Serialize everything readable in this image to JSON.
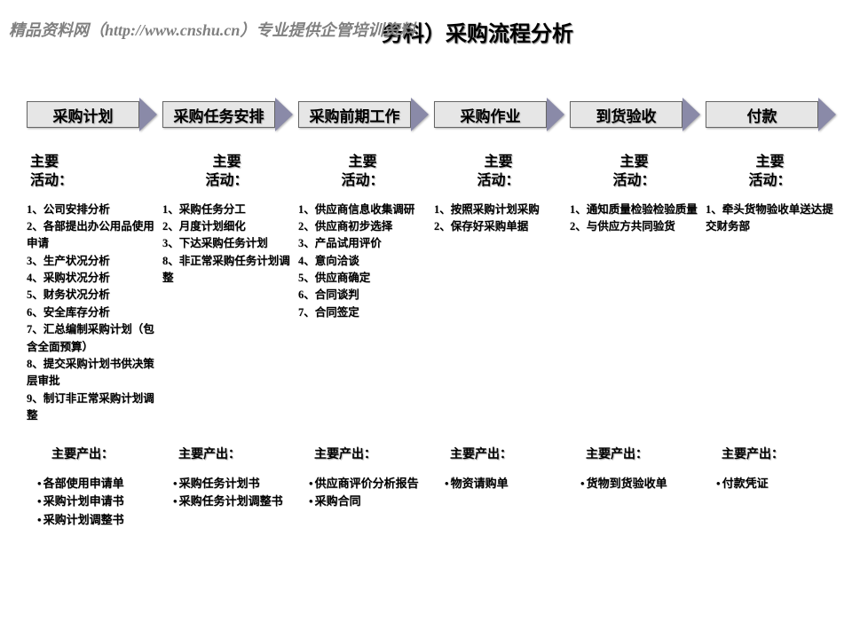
{
  "watermark": "精品资料网（http://www.cnshu.cn）专业提供企管培训资料",
  "page_title_suffix": "务科）采购流程分析",
  "section_activities_label": "主要\n活动：",
  "section_outputs_label": "主要产出：",
  "arrow_fill": "#e6e6e6",
  "arrow_head": "#8a8aa8",
  "columns": [
    {
      "phase": "采购计划",
      "activities": [
        "1、公司安排分析",
        "2、各部提出办公用品使用申请",
        "3、生产状况分析",
        "4、采购状况分析",
        "5、财务状况分析",
        "6、安全库存分析",
        "7、汇总编制采购计划（包含全面预算）",
        "8、提交采购计划书供决策层审批",
        "9、制订非正常采购计划调整"
      ],
      "outputs": [
        "各部使用申请单",
        "采购计划申请书",
        "采购计划调整书"
      ]
    },
    {
      "phase": "采购任务安排",
      "activities": [
        "1、采购任务分工",
        "2、月度计划细化",
        "3、下达采购任务计划",
        "8、非正常采购任务计划调整"
      ],
      "outputs": [
        "采购任务计划书",
        "采购任务计划调整书"
      ]
    },
    {
      "phase": "采购前期工作",
      "activities": [
        "1、供应商信息收集调研",
        "2、供应商初步选择",
        "3、产品试用评价",
        "4、意向洽谈",
        "5、供应商确定",
        "6、合同谈判",
        "7、合同签定"
      ],
      "outputs": [
        "供应商评价分析报告",
        "采购合同"
      ]
    },
    {
      "phase": "采购作业",
      "activities": [
        "1、按照采购计划采购",
        "2、保存好采购单据"
      ],
      "outputs": [
        "物资请购单"
      ]
    },
    {
      "phase": "到货验收",
      "activities": [
        "1、通知质量检验检验质量",
        "2、与供应方共同验货"
      ],
      "outputs": [
        "货物到货验收单"
      ]
    },
    {
      "phase": "付款",
      "activities": [
        "1、牵头货物验收单送达提交财务部"
      ],
      "outputs": [
        "付款凭证"
      ]
    }
  ]
}
